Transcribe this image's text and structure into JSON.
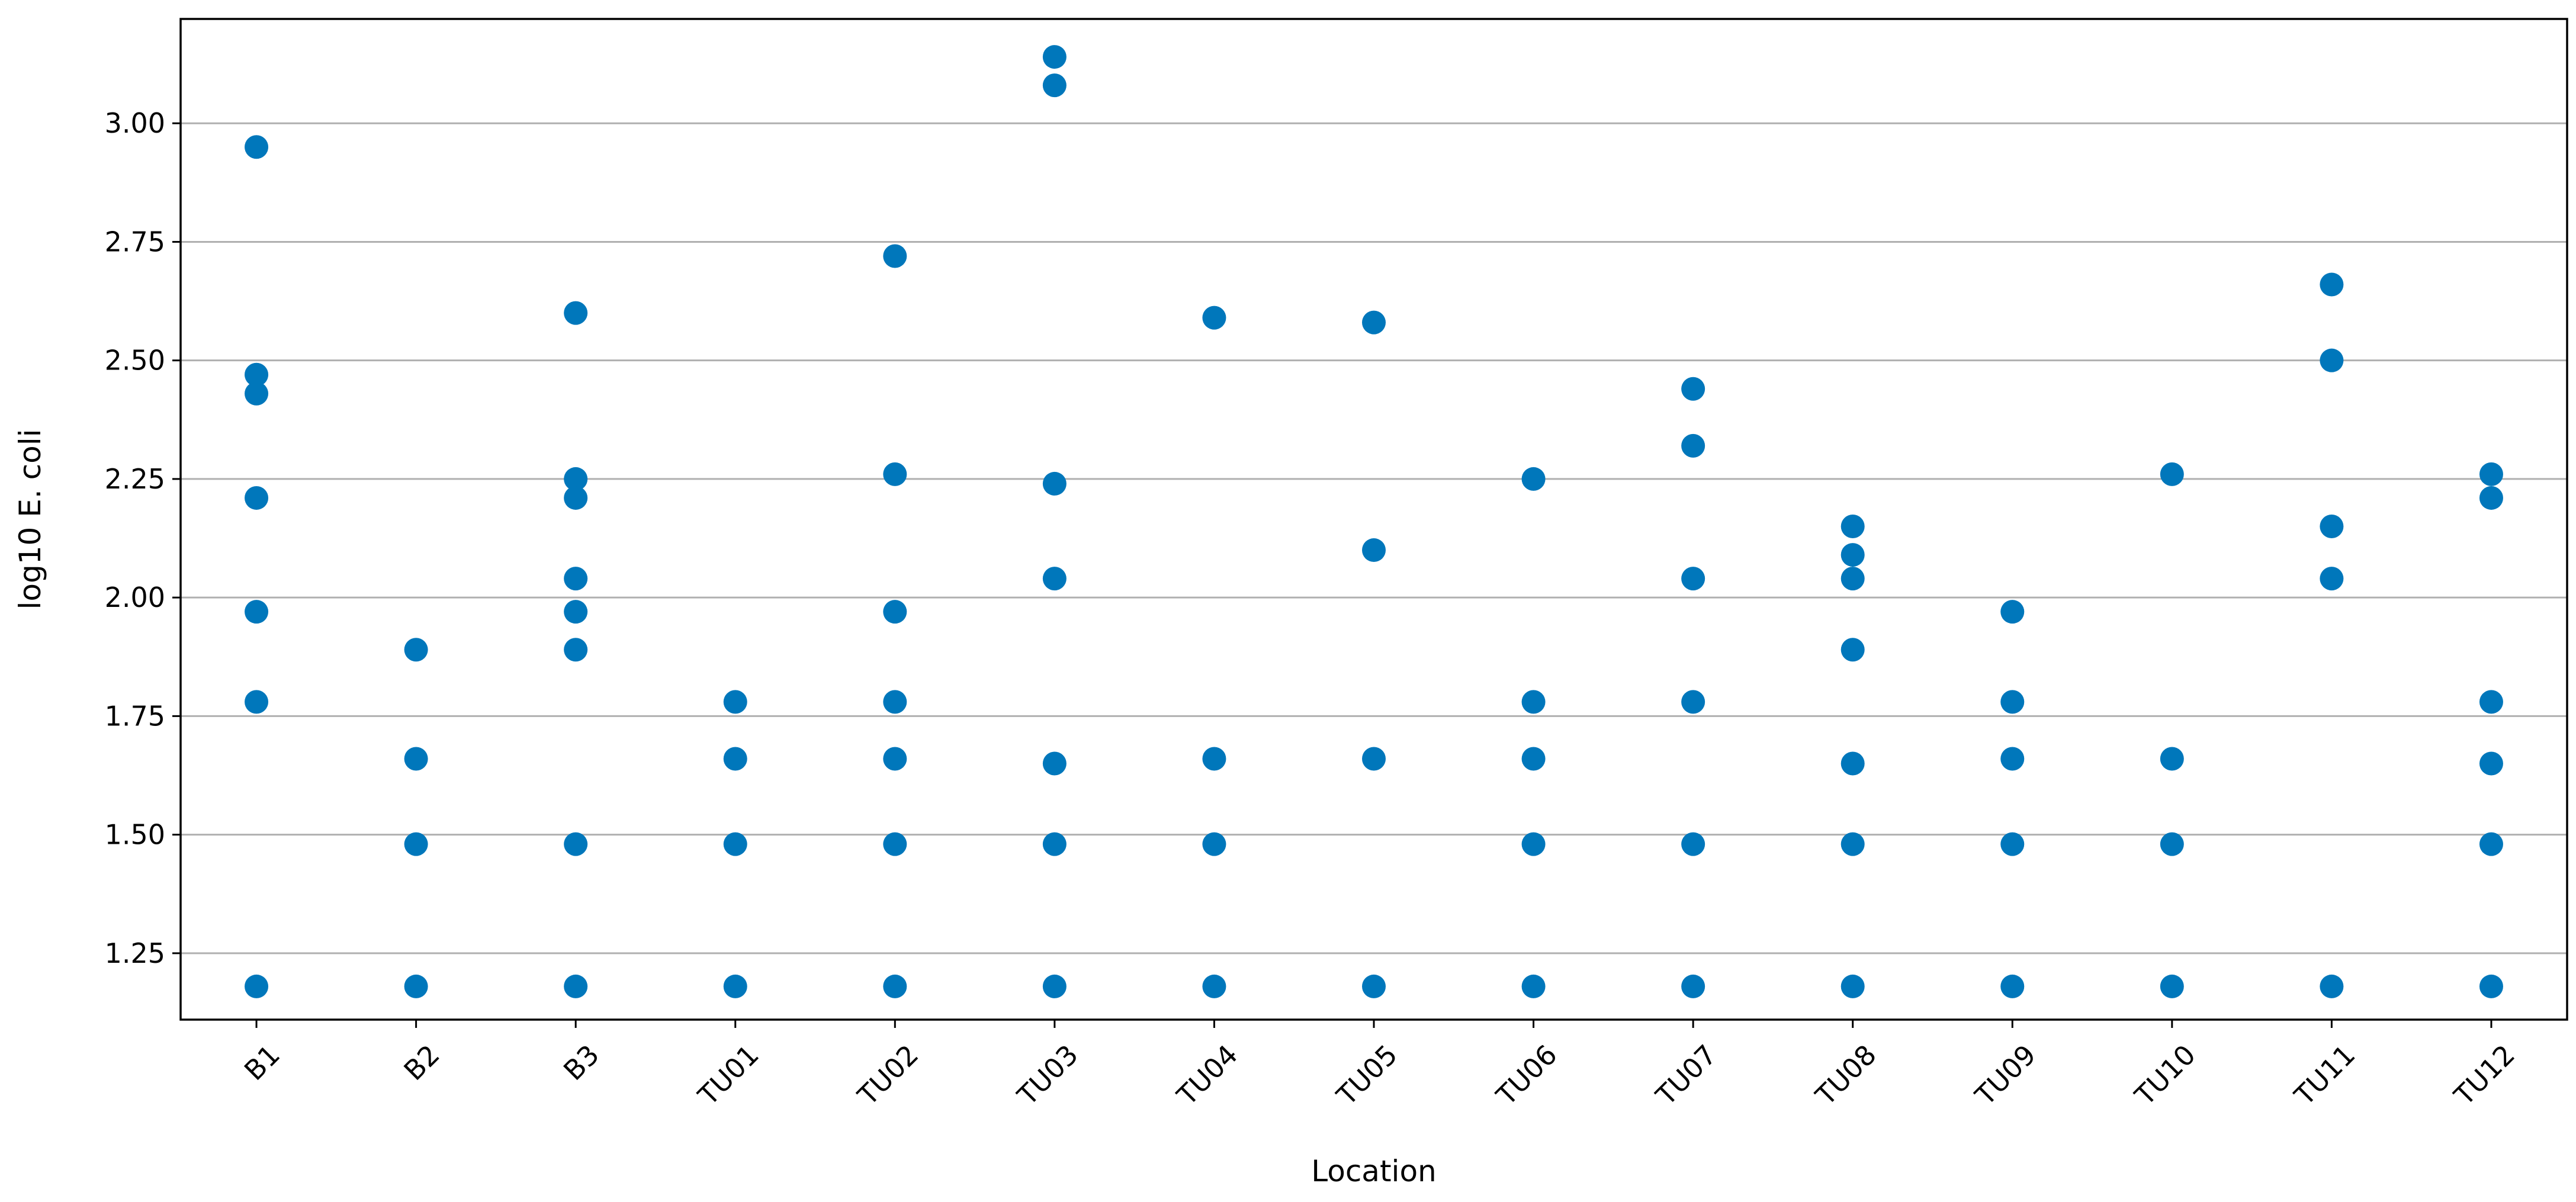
{
  "chart_data": {
    "type": "scatter",
    "title": "",
    "xlabel": "Location",
    "ylabel": "log10 E. coli",
    "categories": [
      "B1",
      "B2",
      "B3",
      "TU01",
      "TU02",
      "TU03",
      "TU04",
      "TU05",
      "TU06",
      "TU07",
      "TU08",
      "TU09",
      "TU10",
      "TU11",
      "TU12"
    ],
    "ylim": [
      1.11,
      3.22
    ],
    "yticks": [
      1.25,
      1.5,
      1.75,
      2.0,
      2.25,
      2.5,
      2.75,
      3.0
    ],
    "ytick_labels": [
      "1.25",
      "1.50",
      "1.75",
      "2.00",
      "2.25",
      "2.50",
      "2.75",
      "3.00"
    ],
    "grid": "horizontal",
    "marker_color": "#0077bb",
    "points": {
      "B1": [
        2.95,
        2.47,
        2.43,
        2.21,
        1.97,
        1.78,
        1.18
      ],
      "B2": [
        1.89,
        1.66,
        1.48,
        1.18
      ],
      "B3": [
        2.6,
        2.25,
        2.21,
        2.04,
        1.97,
        1.89,
        1.48,
        1.18
      ],
      "TU01": [
        1.78,
        1.66,
        1.48,
        1.18
      ],
      "TU02": [
        2.72,
        2.26,
        1.97,
        1.78,
        1.66,
        1.48,
        1.18
      ],
      "TU03": [
        3.14,
        3.08,
        2.24,
        2.04,
        1.65,
        1.48,
        1.18
      ],
      "TU04": [
        2.59,
        1.66,
        1.48,
        1.18
      ],
      "TU05": [
        2.58,
        2.1,
        1.66,
        1.18
      ],
      "TU06": [
        2.25,
        1.78,
        1.66,
        1.48,
        1.18
      ],
      "TU07": [
        2.44,
        2.32,
        2.04,
        1.78,
        1.48,
        1.18
      ],
      "TU08": [
        2.15,
        2.09,
        2.04,
        1.89,
        1.65,
        1.48,
        1.18
      ],
      "TU09": [
        1.97,
        1.78,
        1.66,
        1.48,
        1.18
      ],
      "TU10": [
        2.26,
        1.66,
        1.48,
        1.18
      ],
      "TU11": [
        2.66,
        2.5,
        2.15,
        2.04,
        1.18
      ],
      "TU12": [
        2.26,
        2.21,
        1.78,
        1.65,
        1.48,
        1.18
      ]
    }
  }
}
